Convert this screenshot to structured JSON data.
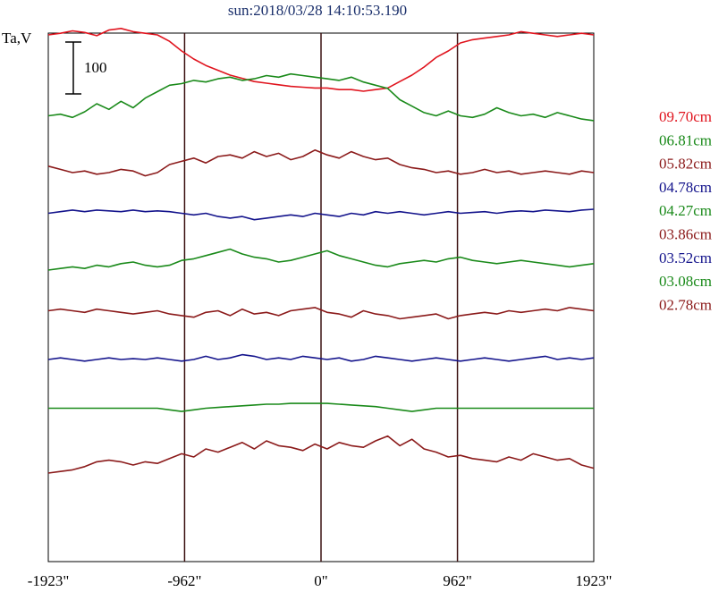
{
  "title": "sun:2018/03/28 14:10:53.190",
  "chart_data": {
    "type": "line",
    "title": "sun:2018/03/28 14:10:53.190",
    "ylabel": "Ta,V",
    "scale_bar_label": "100",
    "x_ticks": [
      "-1923\"",
      "-962\"",
      "0\"",
      "962\"",
      "1923\""
    ],
    "x_tick_values": [
      -1923,
      -962,
      0,
      962,
      1923
    ],
    "xlim": [
      -1923,
      1923
    ],
    "vertical_lines": [
      -962,
      0,
      962
    ],
    "series": [
      {
        "name": "09.70cm",
        "color": "#e0141e",
        "values": [
          80,
          82,
          85,
          83,
          79,
          86,
          88,
          84,
          82,
          80,
          72,
          60,
          50,
          42,
          36,
          30,
          26,
          22,
          20,
          18,
          16,
          15,
          14,
          14,
          12,
          12,
          10,
          12,
          14,
          22,
          30,
          40,
          52,
          60,
          70,
          74,
          76,
          78,
          80,
          84,
          82,
          80,
          78,
          80,
          82,
          80
        ]
      },
      {
        "name": "06.81cm",
        "color": "#1a8a1a",
        "values": [
          40,
          42,
          38,
          45,
          55,
          48,
          58,
          50,
          62,
          70,
          78,
          80,
          84,
          82,
          86,
          88,
          84,
          86,
          90,
          88,
          92,
          90,
          88,
          86,
          84,
          88,
          82,
          78,
          74,
          60,
          52,
          44,
          40,
          46,
          40,
          38,
          42,
          50,
          44,
          40,
          42,
          38,
          44,
          40,
          36,
          34
        ]
      },
      {
        "name": "05.82cm",
        "color": "#8b1a1a",
        "values": [
          38,
          34,
          30,
          32,
          28,
          30,
          34,
          32,
          26,
          30,
          40,
          44,
          48,
          42,
          50,
          52,
          48,
          56,
          50,
          54,
          46,
          50,
          58,
          52,
          48,
          56,
          50,
          46,
          48,
          40,
          36,
          34,
          30,
          32,
          28,
          30,
          34,
          30,
          32,
          28,
          30,
          32,
          30,
          28,
          32,
          30
        ]
      },
      {
        "name": "04.78cm",
        "color": "#14148c",
        "values": [
          40,
          42,
          44,
          42,
          44,
          43,
          42,
          44,
          42,
          43,
          42,
          40,
          38,
          40,
          36,
          34,
          36,
          32,
          34,
          36,
          38,
          36,
          40,
          38,
          36,
          40,
          38,
          42,
          40,
          42,
          40,
          38,
          40,
          42,
          40,
          41,
          42,
          40,
          42,
          43,
          42,
          44,
          43,
          42,
          44,
          45
        ]
      },
      {
        "name": "04.27cm",
        "color": "#1a8a1a",
        "values": [
          30,
          32,
          34,
          32,
          36,
          34,
          38,
          40,
          36,
          34,
          36,
          42,
          44,
          48,
          52,
          56,
          50,
          46,
          44,
          40,
          42,
          46,
          50,
          54,
          48,
          44,
          40,
          36,
          34,
          38,
          40,
          42,
          40,
          44,
          46,
          42,
          40,
          38,
          40,
          42,
          40,
          38,
          36,
          34,
          36,
          38
        ]
      },
      {
        "name": "03.86cm",
        "color": "#8b1a1a",
        "values": [
          40,
          42,
          40,
          38,
          42,
          40,
          38,
          36,
          38,
          40,
          36,
          34,
          32,
          38,
          40,
          34,
          42,
          36,
          38,
          34,
          40,
          42,
          44,
          38,
          36,
          32,
          40,
          36,
          34,
          30,
          32,
          34,
          36,
          30,
          34,
          36,
          38,
          36,
          40,
          38,
          40,
          42,
          40,
          44,
          42,
          40
        ]
      },
      {
        "name": "03.52cm",
        "color": "#14148c",
        "values": [
          40,
          42,
          40,
          38,
          40,
          42,
          40,
          41,
          40,
          42,
          40,
          38,
          40,
          44,
          40,
          42,
          46,
          44,
          40,
          42,
          40,
          44,
          42,
          40,
          42,
          38,
          40,
          44,
          42,
          40,
          38,
          40,
          42,
          40,
          38,
          40,
          42,
          40,
          38,
          40,
          42,
          44,
          40,
          42,
          40,
          42
        ]
      },
      {
        "name": "03.08cm",
        "color": "#1a8a1a",
        "values": [
          40,
          40,
          40,
          40,
          40,
          40,
          40,
          40,
          40,
          40,
          38,
          36,
          38,
          40,
          41,
          42,
          43,
          44,
          45,
          45,
          46,
          46,
          46,
          46,
          45,
          44,
          43,
          42,
          40,
          38,
          36,
          38,
          40,
          40,
          40,
          40,
          40,
          40,
          40,
          40,
          40,
          40,
          40,
          40,
          40,
          40
        ]
      },
      {
        "name": "02.78cm",
        "color": "#8b1a1a",
        "values": [
          20,
          22,
          24,
          28,
          34,
          36,
          34,
          30,
          34,
          32,
          38,
          44,
          40,
          50,
          46,
          52,
          58,
          50,
          60,
          54,
          52,
          48,
          56,
          50,
          58,
          54,
          52,
          60,
          66,
          54,
          62,
          50,
          46,
          40,
          42,
          38,
          36,
          34,
          40,
          36,
          44,
          40,
          36,
          38,
          30,
          26
        ]
      }
    ]
  }
}
